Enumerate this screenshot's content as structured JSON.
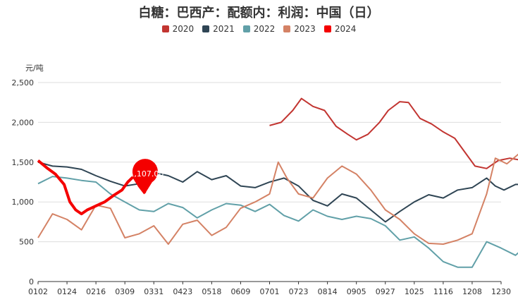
{
  "chart_data": {
    "type": "line",
    "title": "白糖：巴西产：配额内：利润：中国（日）",
    "ylabel": "元/吨",
    "ylim": [
      0,
      2500
    ],
    "yticks": [
      0,
      500,
      1000,
      1500,
      2000,
      2500
    ],
    "ytick_labels": [
      "0",
      "500",
      "1,000",
      "1,500",
      "2,000",
      "2,500"
    ],
    "x_tick_labels": [
      "0102",
      "0124",
      "0216",
      "0309",
      "0331",
      "0423",
      "0518",
      "0609",
      "0701",
      "0723",
      "0814",
      "0905",
      "0927",
      "1025",
      "1116",
      "1208",
      "1230"
    ],
    "legend_position": "top-center",
    "grid": true,
    "annotation": {
      "series": "2024",
      "x": "0309",
      "value": 1107.0,
      "label": "1,107.00"
    },
    "series": [
      {
        "name": "2020",
        "color": "#c23531",
        "points": [
          [
            8.0,
            1960
          ],
          [
            8.4,
            2000
          ],
          [
            8.8,
            2150
          ],
          [
            9.1,
            2300
          ],
          [
            9.5,
            2200
          ],
          [
            9.9,
            2150
          ],
          [
            10.3,
            1950
          ],
          [
            10.7,
            1850
          ],
          [
            11.0,
            1780
          ],
          [
            11.4,
            1850
          ],
          [
            11.8,
            2000
          ],
          [
            12.1,
            2150
          ],
          [
            12.5,
            2260
          ],
          [
            12.8,
            2250
          ],
          [
            13.2,
            2050
          ],
          [
            13.6,
            1980
          ],
          [
            14.0,
            1880
          ],
          [
            14.4,
            1800
          ],
          [
            14.7,
            1650
          ],
          [
            15.1,
            1450
          ],
          [
            15.5,
            1420
          ],
          [
            15.9,
            1520
          ],
          [
            16.3,
            1550
          ],
          [
            16.6,
            1530
          ],
          [
            17.0,
            1520
          ]
        ]
      },
      {
        "name": "2021",
        "color": "#2f4554",
        "points": [
          [
            0.0,
            1500
          ],
          [
            0.5,
            1450
          ],
          [
            1.0,
            1440
          ],
          [
            1.5,
            1410
          ],
          [
            2.0,
            1330
          ],
          [
            2.5,
            1260
          ],
          [
            3.0,
            1200
          ],
          [
            3.5,
            1230
          ],
          [
            4.0,
            1370
          ],
          [
            4.5,
            1330
          ],
          [
            5.0,
            1250
          ],
          [
            5.5,
            1380
          ],
          [
            6.0,
            1280
          ],
          [
            6.5,
            1330
          ],
          [
            7.0,
            1200
          ],
          [
            7.5,
            1180
          ],
          [
            8.0,
            1250
          ],
          [
            8.5,
            1300
          ],
          [
            9.0,
            1200
          ],
          [
            9.5,
            1020
          ],
          [
            10.0,
            950
          ],
          [
            10.5,
            1100
          ],
          [
            11.0,
            1050
          ],
          [
            11.5,
            900
          ],
          [
            12.0,
            750
          ],
          [
            12.5,
            880
          ],
          [
            13.0,
            1000
          ],
          [
            13.5,
            1090
          ],
          [
            14.0,
            1050
          ],
          [
            14.5,
            1150
          ],
          [
            15.0,
            1180
          ],
          [
            15.5,
            1300
          ],
          [
            15.8,
            1200
          ],
          [
            16.1,
            1150
          ],
          [
            16.5,
            1220
          ],
          [
            17.0,
            1220
          ]
        ]
      },
      {
        "name": "2022",
        "color": "#61a0a8",
        "points": [
          [
            0.0,
            1230
          ],
          [
            0.5,
            1320
          ],
          [
            1.0,
            1300
          ],
          [
            1.5,
            1270
          ],
          [
            2.0,
            1250
          ],
          [
            2.5,
            1100
          ],
          [
            3.0,
            1000
          ],
          [
            3.5,
            900
          ],
          [
            4.0,
            880
          ],
          [
            4.5,
            980
          ],
          [
            5.0,
            930
          ],
          [
            5.5,
            800
          ],
          [
            6.0,
            900
          ],
          [
            6.5,
            980
          ],
          [
            7.0,
            960
          ],
          [
            7.5,
            880
          ],
          [
            8.0,
            970
          ],
          [
            8.5,
            830
          ],
          [
            9.0,
            760
          ],
          [
            9.5,
            900
          ],
          [
            10.0,
            820
          ],
          [
            10.5,
            780
          ],
          [
            11.0,
            820
          ],
          [
            11.5,
            790
          ],
          [
            12.0,
            700
          ],
          [
            12.5,
            520
          ],
          [
            13.0,
            560
          ],
          [
            13.5,
            420
          ],
          [
            14.0,
            250
          ],
          [
            14.5,
            180
          ],
          [
            15.0,
            180
          ],
          [
            15.5,
            500
          ],
          [
            16.0,
            420
          ],
          [
            16.5,
            330
          ],
          [
            17.0,
            490
          ]
        ]
      },
      {
        "name": "2023",
        "color": "#d48265",
        "points": [
          [
            0.0,
            550
          ],
          [
            0.5,
            850
          ],
          [
            1.0,
            780
          ],
          [
            1.5,
            650
          ],
          [
            2.0,
            960
          ],
          [
            2.5,
            920
          ],
          [
            3.0,
            550
          ],
          [
            3.5,
            600
          ],
          [
            4.0,
            700
          ],
          [
            4.5,
            470
          ],
          [
            5.0,
            720
          ],
          [
            5.5,
            770
          ],
          [
            6.0,
            580
          ],
          [
            6.5,
            680
          ],
          [
            7.0,
            920
          ],
          [
            7.5,
            1000
          ],
          [
            8.0,
            1100
          ],
          [
            8.3,
            1500
          ],
          [
            8.6,
            1300
          ],
          [
            9.0,
            1100
          ],
          [
            9.5,
            1050
          ],
          [
            10.0,
            1300
          ],
          [
            10.5,
            1450
          ],
          [
            11.0,
            1350
          ],
          [
            11.5,
            1150
          ],
          [
            12.0,
            900
          ],
          [
            12.5,
            780
          ],
          [
            13.0,
            600
          ],
          [
            13.5,
            480
          ],
          [
            14.0,
            470
          ],
          [
            14.5,
            520
          ],
          [
            15.0,
            600
          ],
          [
            15.5,
            1100
          ],
          [
            15.8,
            1550
          ],
          [
            16.2,
            1480
          ],
          [
            16.6,
            1600
          ],
          [
            17.0,
            1300
          ]
        ]
      },
      {
        "name": "2024",
        "color": "#f40000",
        "points": [
          [
            0.0,
            1520
          ],
          [
            0.3,
            1430
          ],
          [
            0.6,
            1350
          ],
          [
            0.9,
            1220
          ],
          [
            1.1,
            1000
          ],
          [
            1.3,
            900
          ],
          [
            1.5,
            850
          ],
          [
            1.7,
            900
          ],
          [
            2.0,
            950
          ],
          [
            2.3,
            1000
          ],
          [
            2.6,
            1080
          ],
          [
            2.9,
            1150
          ],
          [
            3.1,
            1250
          ],
          [
            3.3,
            1320
          ],
          [
            3.5,
            1200
          ],
          [
            3.7,
            1107
          ]
        ]
      }
    ]
  }
}
